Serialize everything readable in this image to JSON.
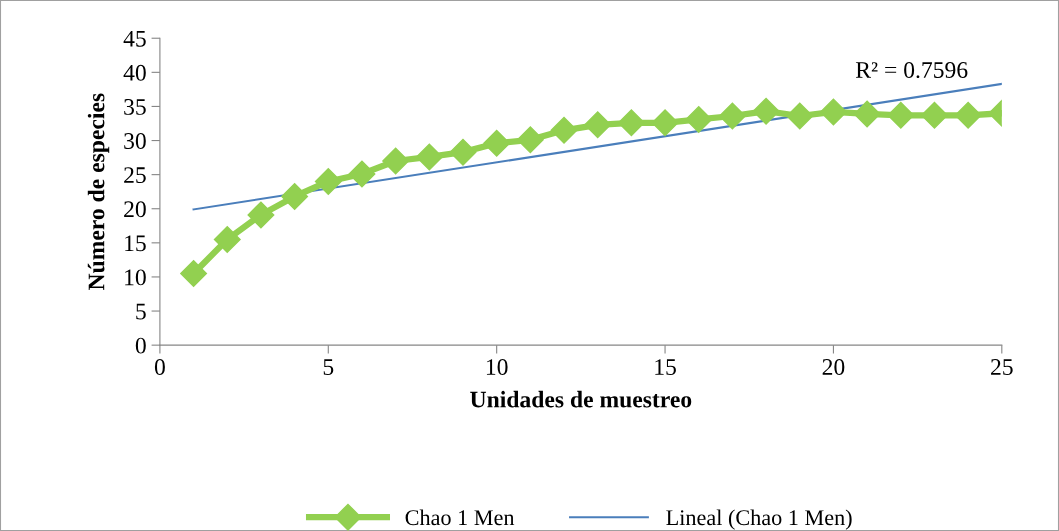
{
  "chart_data": {
    "type": "line",
    "xlabel": "Unidades de muestreo",
    "ylabel": "Número de especies",
    "x": [
      1,
      2,
      3,
      4,
      5,
      6,
      7,
      8,
      9,
      10,
      11,
      12,
      13,
      14,
      15,
      16,
      17,
      18,
      19,
      20,
      21,
      22,
      23,
      24,
      25
    ],
    "series": [
      {
        "name": "Chao 1 Men",
        "color": "#92d050",
        "marker": "diamond",
        "values": [
          10.5,
          15.5,
          19.1,
          21.8,
          24.0,
          25.1,
          27.0,
          27.6,
          28.3,
          29.6,
          30.1,
          31.5,
          32.3,
          32.6,
          32.6,
          33.1,
          33.6,
          34.3,
          33.6,
          34.2,
          33.9,
          33.7,
          33.7,
          33.7,
          34.0
        ]
      },
      {
        "name": "Lineal (Chao 1 Men)",
        "color": "#4a7ebb",
        "marker": "none",
        "x": [
          1,
          25
        ],
        "values": [
          19.9,
          38.3
        ]
      }
    ],
    "xlim": [
      0,
      25
    ],
    "xticks": [
      0,
      5,
      10,
      15,
      20,
      25
    ],
    "ylim": [
      0,
      45
    ],
    "yticks": [
      0,
      5,
      10,
      15,
      20,
      25,
      30,
      35,
      40,
      45
    ],
    "annotations": [
      "R² = 0.7596"
    ],
    "grid": false,
    "legend": "bottom"
  }
}
